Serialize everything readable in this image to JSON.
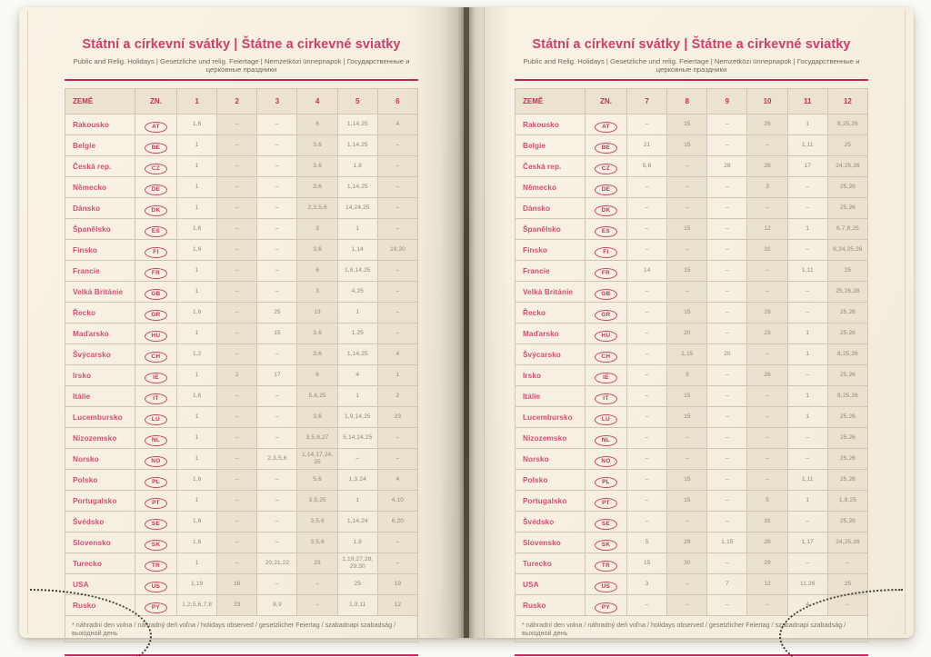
{
  "colors": {
    "accent_pink": "#d43d6a",
    "header_red": "#c23156",
    "rule_magenta": "#c52c5b",
    "value_gray": "#8e8678",
    "page_cream": "#f6efe0"
  },
  "title": "Státní a církevní svátky | Štátne a cirkevné sviatky",
  "subtitle": "Public and Relig. Holidays | Gesetzliche und relig. Feiertage | Nemzetközi ünnepnapok | Государственные и церковные праздники",
  "footnote": "* náhradní den volna / náhradný deň voľna / holidays observed / gesetzlicher Feiertag / szabadnapi szabadság / выходной день",
  "table_headers": {
    "country": "ZEMĚ",
    "code": "ZN."
  },
  "pages": [
    {
      "side": "left",
      "months": [
        "1",
        "2",
        "3",
        "4",
        "5",
        "6"
      ],
      "rows": [
        {
          "country": "Rakousko",
          "code": "AT",
          "values": [
            "1, 6",
            "–",
            "–",
            "6",
            "1, 14, 25",
            "4"
          ]
        },
        {
          "country": "Belgie",
          "code": "BE",
          "values": [
            "1",
            "–",
            "–",
            "3, 6",
            "1, 14, 25",
            "–"
          ]
        },
        {
          "country": "Česká rep.",
          "code": "CZ",
          "values": [
            "1",
            "–",
            "–",
            "3, 6",
            "1, 8",
            "–"
          ]
        },
        {
          "country": "Německo",
          "code": "DE",
          "values": [
            "1",
            "–",
            "–",
            "3, 6",
            "1, 14, 25",
            "–"
          ]
        },
        {
          "country": "Dánsko",
          "code": "DK",
          "values": [
            "1",
            "–",
            "–",
            "2, 3, 5, 6",
            "14, 24, 25",
            "–"
          ]
        },
        {
          "country": "Španělsko",
          "code": "ES",
          "values": [
            "1, 6",
            "–",
            "–",
            "3",
            "1",
            "–"
          ]
        },
        {
          "country": "Finsko",
          "code": "FI",
          "values": [
            "1, 6",
            "–",
            "–",
            "3, 6",
            "1, 14",
            "19, 20"
          ]
        },
        {
          "country": "Francie",
          "code": "FR",
          "values": [
            "1",
            "–",
            "–",
            "6",
            "1, 8, 14, 25",
            "–"
          ]
        },
        {
          "country": "Velká Británie",
          "code": "GB",
          "values": [
            "1",
            "–",
            "–",
            "3",
            "4, 25",
            "–"
          ]
        },
        {
          "country": "Řecko",
          "code": "GR",
          "values": [
            "1, 6",
            "–",
            "25",
            "13",
            "1",
            "–"
          ]
        },
        {
          "country": "Maďarsko",
          "code": "HU",
          "values": [
            "1",
            "–",
            "15",
            "3, 6",
            "1, 25",
            "–"
          ]
        },
        {
          "country": "Švýcarsko",
          "code": "CH",
          "values": [
            "1, 2",
            "–",
            "–",
            "3, 6",
            "1, 14, 25",
            "4"
          ]
        },
        {
          "country": "Irsko",
          "code": "IE",
          "values": [
            "1",
            "2",
            "17",
            "6",
            "4",
            "1"
          ]
        },
        {
          "country": "Itálie",
          "code": "IT",
          "values": [
            "1, 6",
            "–",
            "–",
            "5, 6, 25",
            "1",
            "2"
          ]
        },
        {
          "country": "Lucembursko",
          "code": "LU",
          "values": [
            "1",
            "–",
            "–",
            "3, 6",
            "1, 9, 14, 25",
            "23"
          ]
        },
        {
          "country": "Nizozemsko",
          "code": "NL",
          "values": [
            "1",
            "–",
            "–",
            "3, 5, 6, 27",
            "5, 14, 24, 25",
            "–"
          ]
        },
        {
          "country": "Norsko",
          "code": "NO",
          "values": [
            "1",
            "–",
            "2, 3, 5, 6",
            "1, 14, 17, 24, 25",
            "–",
            "–"
          ]
        },
        {
          "country": "Polsko",
          "code": "PL",
          "values": [
            "1, 6",
            "–",
            "–",
            "5, 6",
            "1, 3, 24",
            "4"
          ]
        },
        {
          "country": "Portugalsko",
          "code": "PT",
          "values": [
            "1",
            "–",
            "–",
            "3, 5, 25",
            "1",
            "4, 10"
          ]
        },
        {
          "country": "Švédsko",
          "code": "SE",
          "values": [
            "1, 6",
            "–",
            "–",
            "3, 5, 6",
            "1, 14, 24",
            "6, 20"
          ]
        },
        {
          "country": "Slovensko",
          "code": "SK",
          "values": [
            "1, 6",
            "–",
            "–",
            "3, 5, 6",
            "1, 8",
            "–"
          ]
        },
        {
          "country": "Turecko",
          "code": "TR",
          "values": [
            "1",
            "–",
            "20, 21, 22",
            "23",
            "1, 19, 27, 28, 29, 30",
            "–"
          ]
        },
        {
          "country": "USA",
          "code": "US",
          "values": [
            "1, 19",
            "16",
            "–",
            "–",
            "25",
            "19"
          ]
        },
        {
          "country": "Rusko",
          "code": "PY",
          "values": [
            "1, 2, 5, 6, 7, 8",
            "23",
            "8, 9",
            "–",
            "1, 9, 11",
            "12"
          ]
        }
      ]
    },
    {
      "side": "right",
      "months": [
        "7",
        "8",
        "9",
        "10",
        "11",
        "12"
      ],
      "rows": [
        {
          "country": "Rakousko",
          "code": "AT",
          "values": [
            "–",
            "15",
            "–",
            "26",
            "1",
            "8, 25, 26"
          ]
        },
        {
          "country": "Belgie",
          "code": "BE",
          "values": [
            "21",
            "15",
            "–",
            "–",
            "1, 11",
            "25"
          ]
        },
        {
          "country": "Česká rep.",
          "code": "CZ",
          "values": [
            "5, 6",
            "–",
            "28",
            "28",
            "17",
            "24, 25, 26"
          ]
        },
        {
          "country": "Německo",
          "code": "DE",
          "values": [
            "–",
            "–",
            "–",
            "3",
            "–",
            "25, 26"
          ]
        },
        {
          "country": "Dánsko",
          "code": "DK",
          "values": [
            "–",
            "–",
            "–",
            "–",
            "–",
            "25, 26"
          ]
        },
        {
          "country": "Španělsko",
          "code": "ES",
          "values": [
            "–",
            "15",
            "–",
            "12",
            "1",
            "6, 7, 8, 25"
          ]
        },
        {
          "country": "Finsko",
          "code": "FI",
          "values": [
            "–",
            "–",
            "–",
            "31",
            "–",
            "6, 24, 25, 26"
          ]
        },
        {
          "country": "Francie",
          "code": "FR",
          "values": [
            "14",
            "15",
            "–",
            "–",
            "1, 11",
            "25"
          ]
        },
        {
          "country": "Velká Británie",
          "code": "GB",
          "values": [
            "–",
            "–",
            "–",
            "–",
            "–",
            "25, 26, 28"
          ]
        },
        {
          "country": "Řecko",
          "code": "GR",
          "values": [
            "–",
            "15",
            "–",
            "28",
            "–",
            "25, 26"
          ]
        },
        {
          "country": "Maďarsko",
          "code": "HU",
          "values": [
            "–",
            "20",
            "–",
            "23",
            "1",
            "25, 26"
          ]
        },
        {
          "country": "Švýcarsko",
          "code": "CH",
          "values": [
            "–",
            "1, 15",
            "20",
            "–",
            "1",
            "8, 25, 26"
          ]
        },
        {
          "country": "Irsko",
          "code": "IE",
          "values": [
            "–",
            "3",
            "–",
            "26",
            "–",
            "25, 26"
          ]
        },
        {
          "country": "Itálie",
          "code": "IT",
          "values": [
            "–",
            "15",
            "–",
            "–",
            "1",
            "8, 25, 26"
          ]
        },
        {
          "country": "Lucembursko",
          "code": "LU",
          "values": [
            "–",
            "15",
            "–",
            "–",
            "1",
            "25, 26"
          ]
        },
        {
          "country": "Nizozemsko",
          "code": "NL",
          "values": [
            "–",
            "–",
            "–",
            "–",
            "–",
            "25, 26"
          ]
        },
        {
          "country": "Norsko",
          "code": "NO",
          "values": [
            "–",
            "–",
            "–",
            "–",
            "–",
            "25, 26"
          ]
        },
        {
          "country": "Polsko",
          "code": "PL",
          "values": [
            "–",
            "15",
            "–",
            "–",
            "1, 11",
            "25, 26"
          ]
        },
        {
          "country": "Portugalsko",
          "code": "PT",
          "values": [
            "–",
            "15",
            "–",
            "5",
            "1",
            "1, 8, 25"
          ]
        },
        {
          "country": "Švédsko",
          "code": "SE",
          "values": [
            "–",
            "–",
            "–",
            "31",
            "–",
            "25, 26"
          ]
        },
        {
          "country": "Slovensko",
          "code": "SK",
          "values": [
            "5",
            "29",
            "1, 15",
            "28",
            "1, 17",
            "24, 25, 26"
          ]
        },
        {
          "country": "Turecko",
          "code": "TR",
          "values": [
            "15",
            "30",
            "–",
            "29",
            "–",
            "–"
          ]
        },
        {
          "country": "USA",
          "code": "US",
          "values": [
            "3",
            "–",
            "7",
            "12",
            "11, 26",
            "25"
          ]
        },
        {
          "country": "Rusko",
          "code": "PY",
          "values": [
            "–",
            "–",
            "–",
            "–",
            "4",
            "–"
          ]
        }
      ]
    }
  ]
}
